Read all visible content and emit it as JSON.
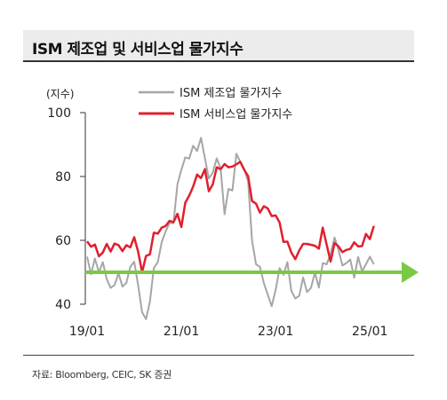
{
  "title": "ISM 제조업 및 서비스업 물가지수",
  "source": "자료: Bloomberg, CEIC, SK 증권",
  "chart_data": {
    "type": "line",
    "unit_label": "(지수)",
    "ylim": [
      40,
      100
    ],
    "yticks": [
      "40",
      "60",
      "80",
      "100"
    ],
    "xticks": [
      {
        "label": "19/01",
        "x": "2019-01"
      },
      {
        "label": "21/01",
        "x": "2021-01"
      },
      {
        "label": "23/01",
        "x": "2023-01"
      },
      {
        "label": "25/01",
        "x": "2025-01"
      }
    ],
    "x": [
      "2019-01",
      "2019-02",
      "2019-03",
      "2019-04",
      "2019-05",
      "2019-06",
      "2019-07",
      "2019-08",
      "2019-09",
      "2019-10",
      "2019-11",
      "2019-12",
      "2020-01",
      "2020-02",
      "2020-03",
      "2020-04",
      "2020-05",
      "2020-06",
      "2020-07",
      "2020-08",
      "2020-09",
      "2020-10",
      "2020-11",
      "2020-12",
      "2021-01",
      "2021-02",
      "2021-03",
      "2021-04",
      "2021-05",
      "2021-06",
      "2021-07",
      "2021-08",
      "2021-09",
      "2021-10",
      "2021-11",
      "2021-12",
      "2022-01",
      "2022-02",
      "2022-03",
      "2022-04",
      "2022-05",
      "2022-06",
      "2022-07",
      "2022-08",
      "2022-09",
      "2022-10",
      "2022-11",
      "2022-12",
      "2023-01",
      "2023-02",
      "2023-03",
      "2023-04",
      "2023-05",
      "2023-06",
      "2023-07",
      "2023-08",
      "2023-09",
      "2023-10",
      "2023-11",
      "2023-12",
      "2024-01",
      "2024-02",
      "2024-03",
      "2024-04",
      "2024-05",
      "2024-06",
      "2024-07",
      "2024-08",
      "2024-09",
      "2024-10",
      "2024-11",
      "2024-12",
      "2025-01",
      "2025-02"
    ],
    "series": [
      {
        "name": "ISM 제조업 물가지수",
        "color": "#a6a6a6",
        "values": [
          54.9,
          49.4,
          54.3,
          50.0,
          53.2,
          47.9,
          45.1,
          46.0,
          49.7,
          45.5,
          46.7,
          51.7,
          53.3,
          45.9,
          37.5,
          35.3,
          40.8,
          51.3,
          53.2,
          59.5,
          62.8,
          65.5,
          65.4,
          77.6,
          82.1,
          86.0,
          85.6,
          89.6,
          88.0,
          92.1,
          85.7,
          79.4,
          81.2,
          85.7,
          82.4,
          68.2,
          76.1,
          75.6,
          87.1,
          84.6,
          82.2,
          78.5,
          60.0,
          52.5,
          51.7,
          46.6,
          43.0,
          39.4,
          44.5,
          51.3,
          49.2,
          53.2,
          44.2,
          41.8,
          42.6,
          48.4,
          43.8,
          45.1,
          49.9,
          45.2,
          52.9,
          52.5,
          55.8,
          60.9,
          57.0,
          52.1,
          52.9,
          54.0,
          48.3,
          54.8,
          50.3,
          52.5,
          54.9,
          52.5
        ]
      },
      {
        "name": "ISM 서비스업 물가지수",
        "color": "#e0202e",
        "values": [
          59.7,
          58.0,
          58.7,
          55.0,
          56.2,
          58.9,
          56.5,
          59.0,
          58.5,
          56.6,
          58.5,
          57.8,
          61.0,
          56.4,
          50.0,
          55.1,
          55.6,
          62.4,
          62.1,
          64.0,
          64.5,
          66.1,
          65.7,
          68.3,
          64.2,
          71.8,
          74.0,
          76.8,
          80.6,
          79.5,
          82.3,
          75.4,
          77.5,
          82.9,
          82.3,
          83.9,
          82.9,
          83.1,
          83.8,
          84.6,
          82.1,
          80.1,
          72.3,
          71.5,
          68.7,
          70.7,
          70.0,
          67.6,
          67.8,
          65.6,
          59.5,
          59.6,
          56.2,
          54.1,
          56.8,
          58.9,
          58.9,
          58.6,
          58.3,
          57.4,
          64.0,
          58.6,
          53.4,
          59.2,
          58.1,
          56.3,
          57.0,
          57.3,
          59.4,
          58.1,
          58.2,
          62.0,
          60.4,
          64.5
        ]
      }
    ],
    "annotation": {
      "type": "arrow",
      "color": "#7ac943",
      "y": 50
    }
  }
}
